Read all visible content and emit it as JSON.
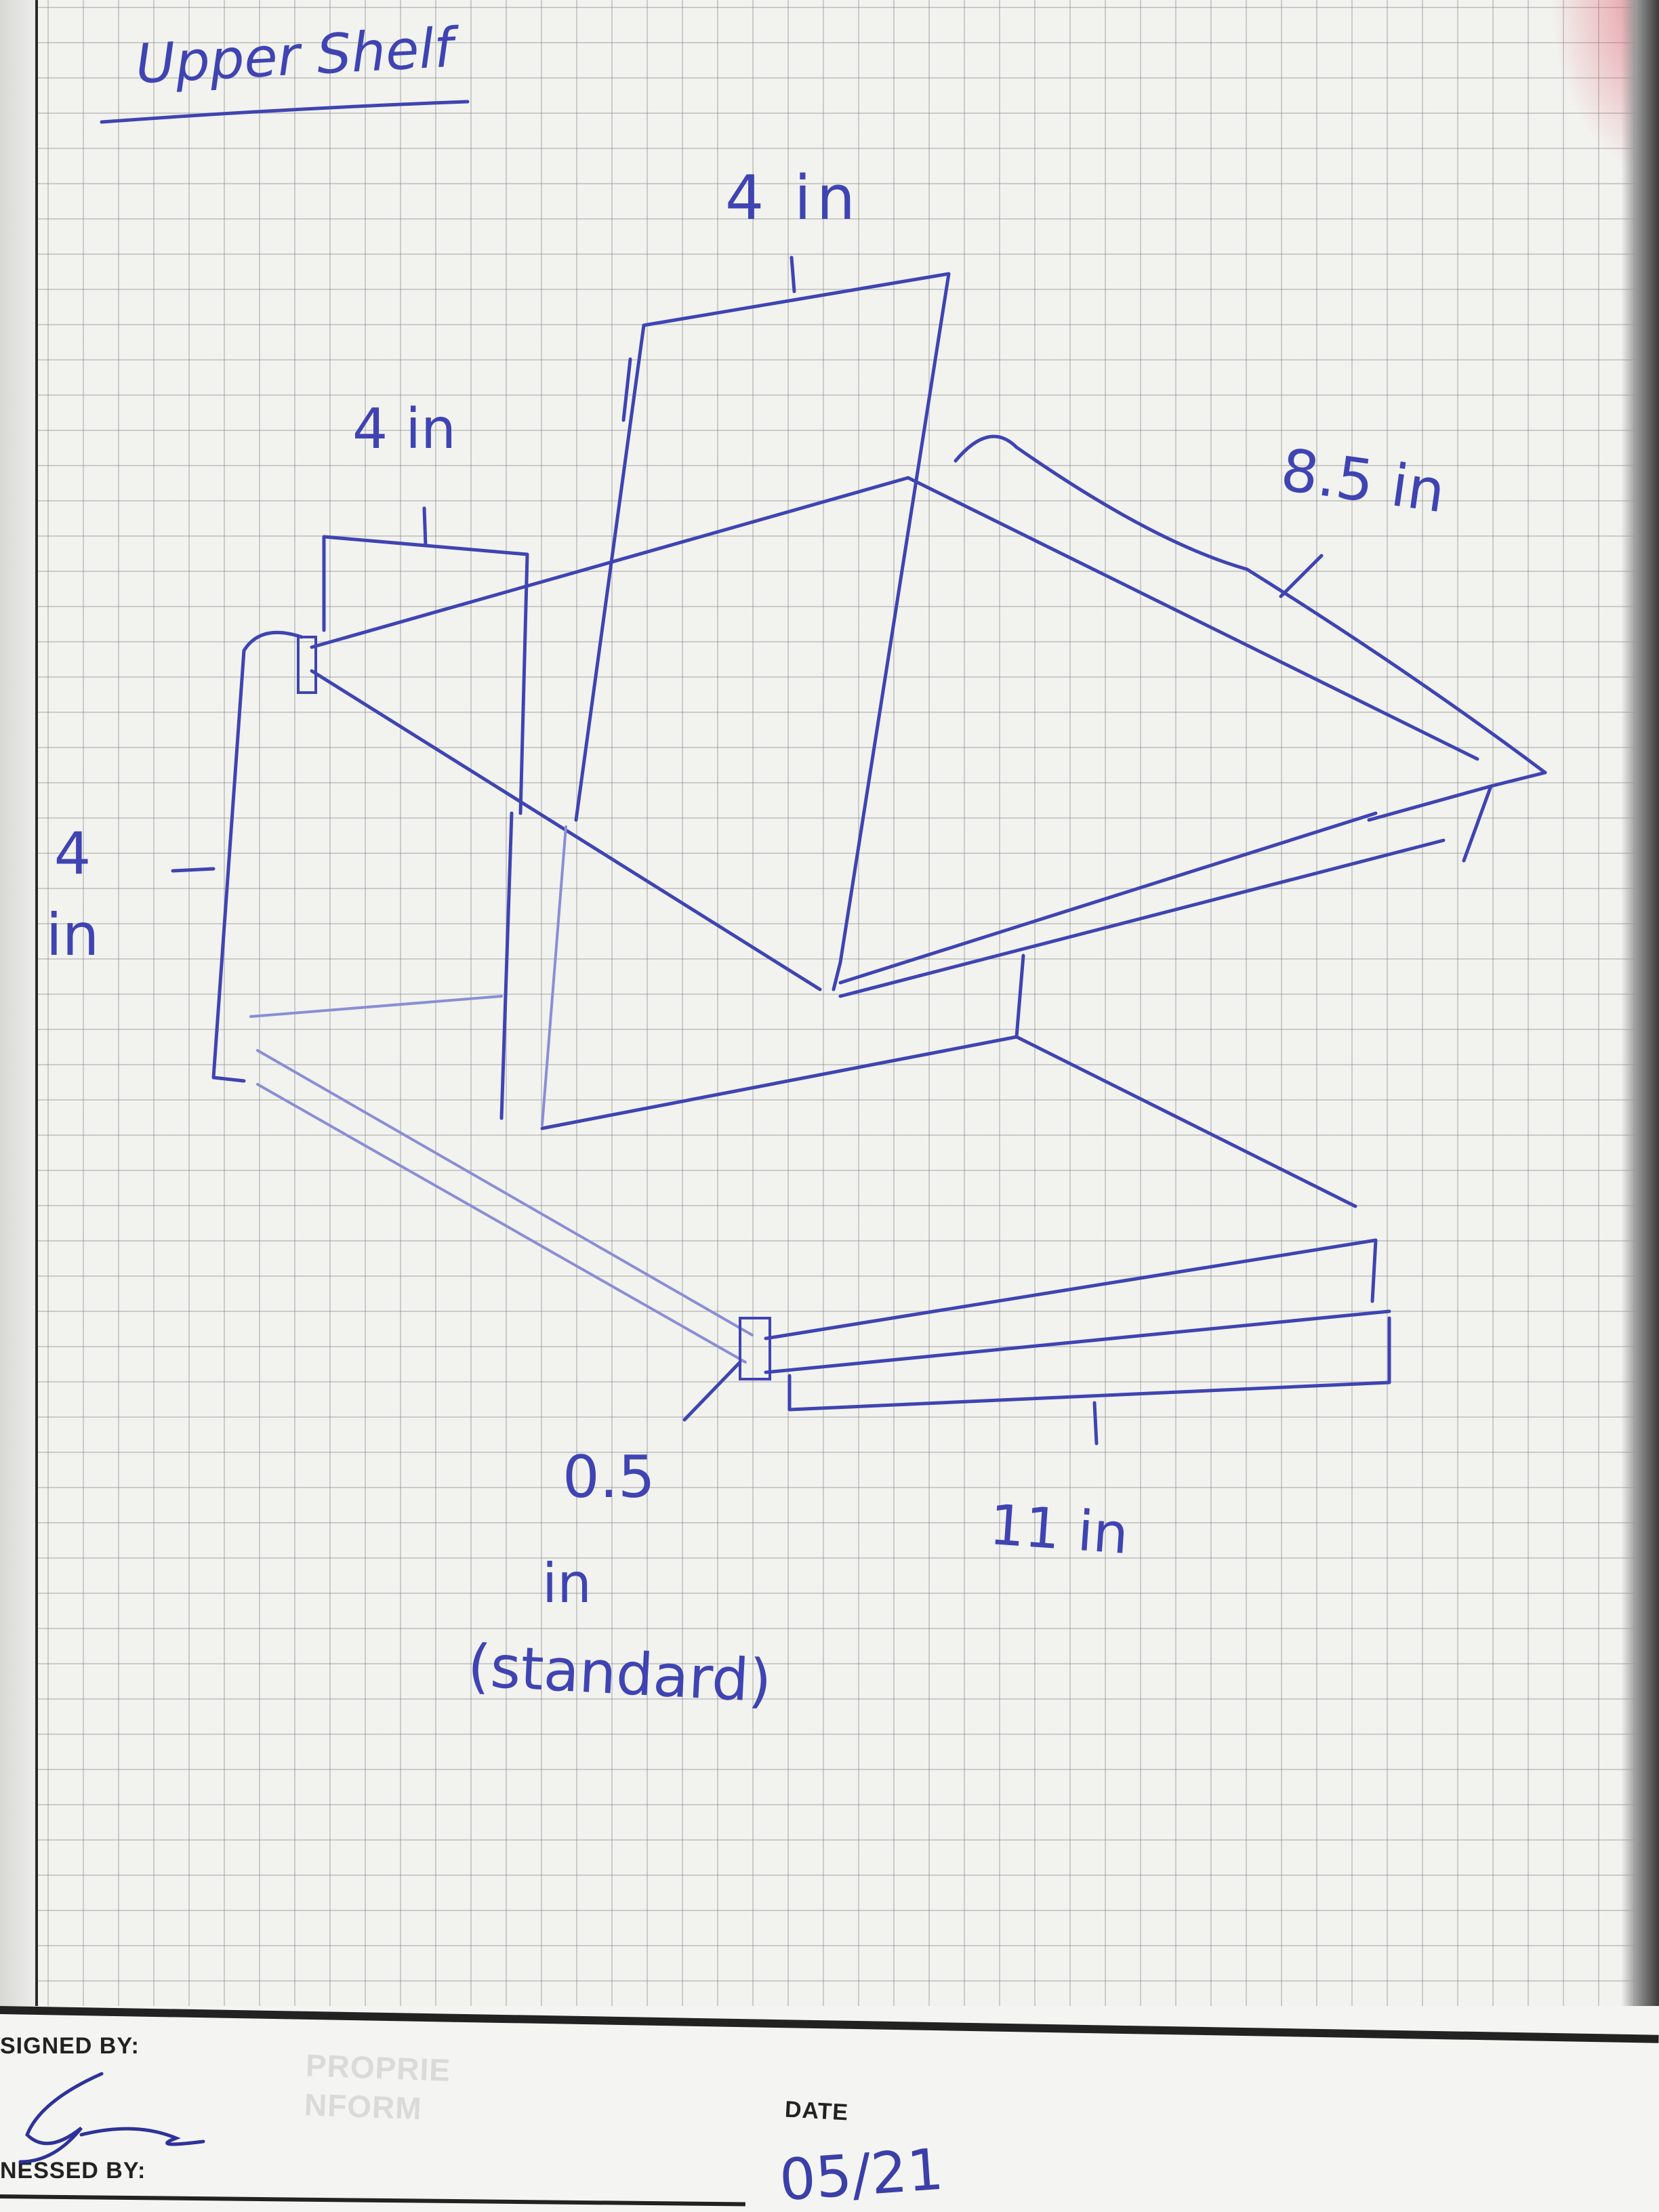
{
  "sketch": {
    "title": "Upper Shelf",
    "labels": {
      "top_width": "4 in",
      "left_panel_width": "4 in",
      "diagonal_length": "8.5 in",
      "left_height": "4 in",
      "thickness_value": "0.5",
      "thickness_unit": "in",
      "thickness_note": "(standard)",
      "length": "11 in"
    }
  },
  "footer": {
    "signed_by_label": "SIGNED BY:",
    "witnessed_by_label": "NESSED BY:",
    "date_label": "DATE",
    "date_value": "05/21",
    "watermark": "PROPRIE\nNFORM"
  },
  "colors": {
    "ink": "#3f44b2",
    "grid": "#9a9a9a",
    "paper": "#f2f2ef"
  }
}
